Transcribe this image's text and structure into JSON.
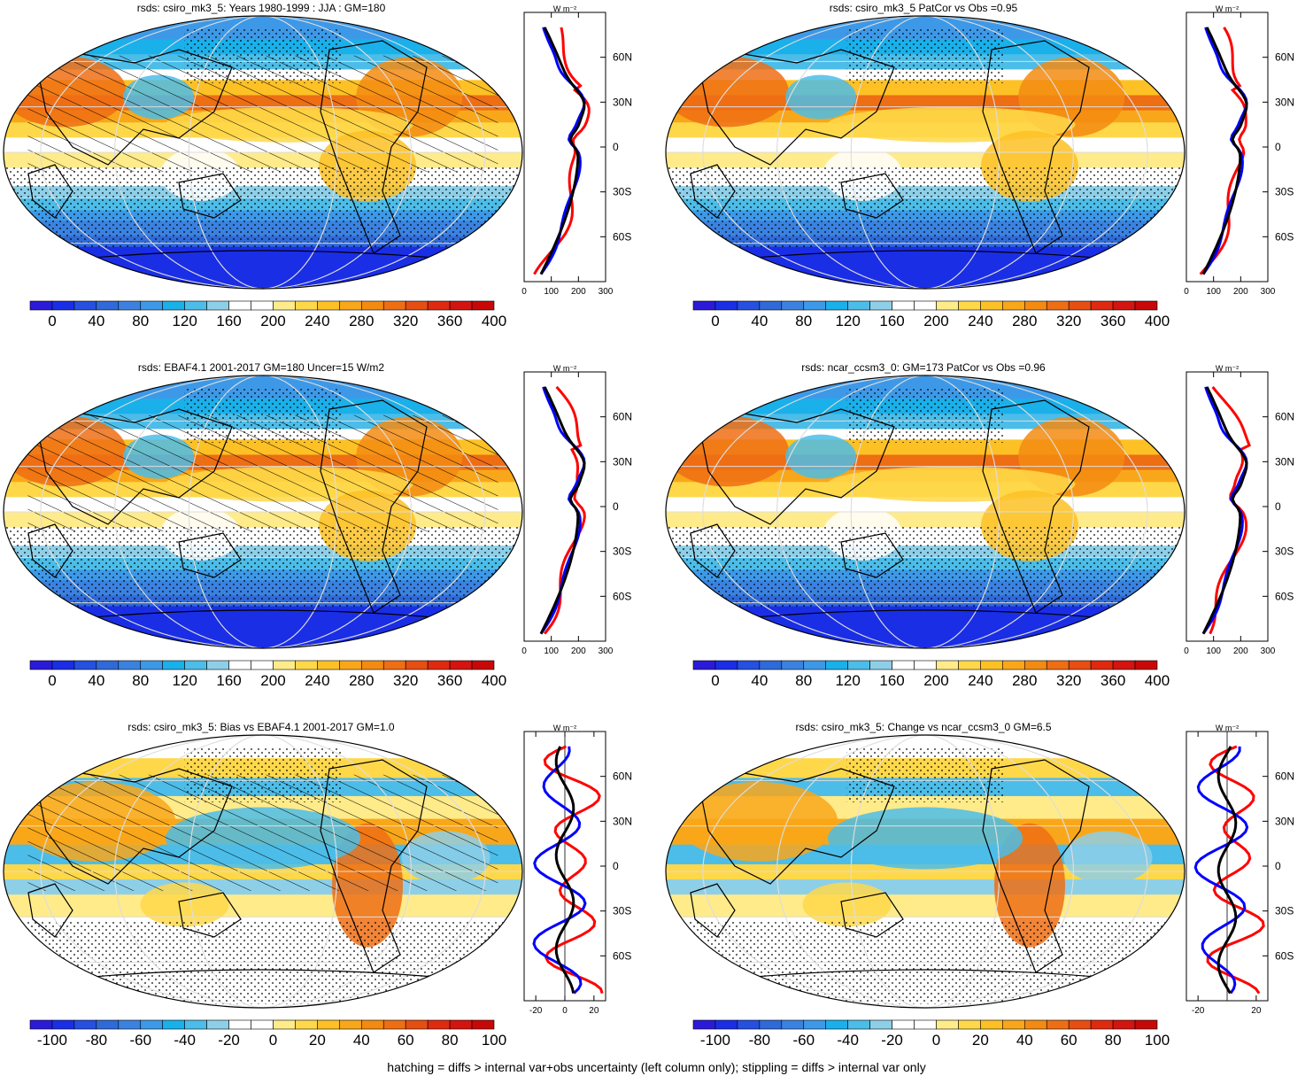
{
  "footer": "hatching = diffs > internal var+obs uncertainty (left column only); stippling = diffs > internal var only",
  "colors": {
    "scale": [
      "#2b1bd8",
      "#1a2ee6",
      "#2550e0",
      "#2f6ad8",
      "#3b82e0",
      "#3d99e8",
      "#1ab0ea",
      "#4cbde8",
      "#8ecfe8",
      "#ffffff",
      "#ffffff",
      "#ffeb8a",
      "#ffd84a",
      "#fdc126",
      "#f9a71a",
      "#f38b12",
      "#ee6e14",
      "#e64e12",
      "#df2a10",
      "#d41410",
      "#c80808"
    ],
    "obs_line": "#ff0000",
    "model_line": "#0000ff",
    "mean_line": "#000000"
  },
  "profile_unit": "W m⁻²",
  "lat_ticks": [
    "60N",
    "30N",
    "0",
    "30S",
    "60S"
  ],
  "panels": [
    {
      "title": "rsds: csiro_mk3_5: Years 1980-1999 : JJA : GM=180",
      "kind": "abs",
      "hatched": true,
      "cbar_labels": [
        "0",
        "40",
        "80",
        "120",
        "160",
        "200",
        "240",
        "280",
        "320",
        "360",
        "400"
      ],
      "profile_ticks": [
        "0",
        "100",
        "200",
        "300"
      ]
    },
    {
      "title": "rsds: csiro_mk3_5 PatCor vs Obs =0.95",
      "kind": "abs",
      "hatched": false,
      "cbar_labels": [
        "0",
        "40",
        "80",
        "120",
        "160",
        "200",
        "240",
        "280",
        "320",
        "360",
        "400"
      ],
      "profile_ticks": [
        "0",
        "100",
        "200",
        "300"
      ]
    },
    {
      "title": "rsds: EBAF4.1 2001-2017 GM=180 Uncer=15 W/m2",
      "kind": "abs",
      "hatched": true,
      "cbar_labels": [
        "0",
        "40",
        "80",
        "120",
        "160",
        "200",
        "240",
        "280",
        "320",
        "360",
        "400"
      ],
      "profile_ticks": [
        "0",
        "100",
        "200",
        "300"
      ]
    },
    {
      "title": "rsds: ncar_ccsm3_0: GM=173 PatCor vs Obs =0.96",
      "kind": "abs",
      "hatched": false,
      "cbar_labels": [
        "0",
        "40",
        "80",
        "120",
        "160",
        "200",
        "240",
        "280",
        "320",
        "360",
        "400"
      ],
      "profile_ticks": [
        "0",
        "100",
        "200",
        "300"
      ]
    },
    {
      "title": "rsds: csiro_mk3_5: Bias vs EBAF4.1 2001-2017 GM=1.0",
      "kind": "diff",
      "hatched": true,
      "cbar_labels": [
        "-100",
        "-80",
        "-60",
        "-40",
        "-20",
        "0",
        "20",
        "40",
        "60",
        "80",
        "100"
      ],
      "profile_ticks": [
        "-20",
        "0",
        "20"
      ]
    },
    {
      "title": "rsds: csiro_mk3_5: Change vs ncar_ccsm3_0 GM=6.5",
      "kind": "diff",
      "hatched": false,
      "cbar_labels": [
        "-100",
        "-80",
        "-60",
        "-40",
        "-20",
        "0",
        "20",
        "40",
        "60",
        "80",
        "100"
      ],
      "profile_ticks": [
        "-20",
        "20"
      ]
    }
  ]
}
